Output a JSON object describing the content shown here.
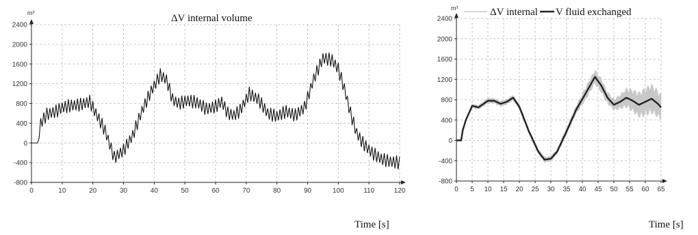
{
  "chart_data": [
    {
      "type": "line",
      "title": "ΔV internal volume",
      "xlabel": "Time [s]",
      "ylabel": "m³",
      "xlim": [
        0,
        120
      ],
      "ylim": [
        -800,
        2400
      ],
      "xticks": [
        0,
        10,
        20,
        30,
        40,
        50,
        60,
        70,
        80,
        90,
        100,
        110,
        120
      ],
      "yticks": [
        -800,
        -400,
        0,
        400,
        800,
        1200,
        1600,
        2000,
        2400
      ],
      "grid": true,
      "oscillation_amplitude": 140,
      "series": [
        {
          "name": "",
          "x": [
            0,
            2,
            3,
            5,
            8,
            10,
            13,
            16,
            19,
            21,
            24,
            27,
            30,
            33,
            36,
            39,
            42,
            44,
            46,
            48,
            51,
            54,
            57,
            60,
            62,
            64,
            66,
            68,
            71,
            74,
            77,
            80,
            83,
            86,
            89,
            92,
            95,
            98,
            100,
            102,
            104,
            106,
            108,
            111,
            114,
            117,
            120
          ],
          "y": [
            0,
            0,
            400,
            580,
            640,
            720,
            760,
            780,
            840,
            600,
            250,
            -300,
            -150,
            150,
            650,
            1050,
            1380,
            1280,
            880,
            800,
            860,
            820,
            690,
            740,
            840,
            600,
            560,
            660,
            1000,
            880,
            600,
            540,
            640,
            560,
            720,
            1300,
            1720,
            1680,
            1500,
            1100,
            600,
            200,
            0,
            -200,
            -320,
            -380,
            -400
          ]
        }
      ]
    },
    {
      "type": "line",
      "title": "",
      "xlabel": "Time [s]",
      "ylabel": "m³",
      "xlim": [
        0,
        65
      ],
      "ylim": [
        -800,
        2400
      ],
      "xticks": [
        0,
        5,
        10,
        15,
        20,
        25,
        30,
        35,
        40,
        45,
        50,
        55,
        60,
        65
      ],
      "yticks": [
        -800,
        -400,
        0,
        400,
        800,
        1200,
        1600,
        2000,
        2400
      ],
      "grid": true,
      "legend": "top",
      "series": [
        {
          "name": "ΔV internal",
          "color": "#c8c8c8",
          "x": [
            0,
            1.5,
            2,
            3,
            5,
            7,
            10,
            12,
            14,
            16,
            18,
            20,
            23,
            26,
            28,
            30,
            32,
            35,
            38,
            41,
            44,
            46,
            48,
            50,
            52,
            54,
            56,
            58,
            60,
            62,
            64,
            65
          ],
          "y": [
            0,
            0,
            200,
            400,
            680,
            650,
            780,
            780,
            720,
            760,
            840,
            660,
            180,
            -220,
            -380,
            -360,
            -220,
            180,
            600,
            920,
            1250,
            1080,
            840,
            700,
            760,
            840,
            780,
            700,
            760,
            820,
            720,
            650
          ],
          "band": [
            0,
            0,
            40,
            40,
            50,
            50,
            60,
            60,
            60,
            60,
            60,
            60,
            60,
            60,
            60,
            60,
            60,
            80,
            90,
            140,
            150,
            150,
            130,
            120,
            150,
            200,
            230,
            260,
            290,
            300,
            280,
            260
          ]
        },
        {
          "name": "V fluid exchanged",
          "color": "#222222",
          "x": [
            0,
            1.5,
            2,
            3,
            5,
            7,
            10,
            12,
            14,
            16,
            18,
            20,
            23,
            26,
            28,
            30,
            32,
            35,
            38,
            41,
            44,
            46,
            48,
            50,
            52,
            54,
            56,
            58,
            60,
            62,
            64,
            65
          ],
          "y": [
            0,
            0,
            200,
            400,
            680,
            650,
            780,
            780,
            720,
            760,
            840,
            660,
            180,
            -220,
            -380,
            -360,
            -220,
            180,
            600,
            920,
            1250,
            1080,
            840,
            700,
            760,
            840,
            780,
            700,
            760,
            820,
            720,
            650
          ]
        }
      ]
    }
  ]
}
